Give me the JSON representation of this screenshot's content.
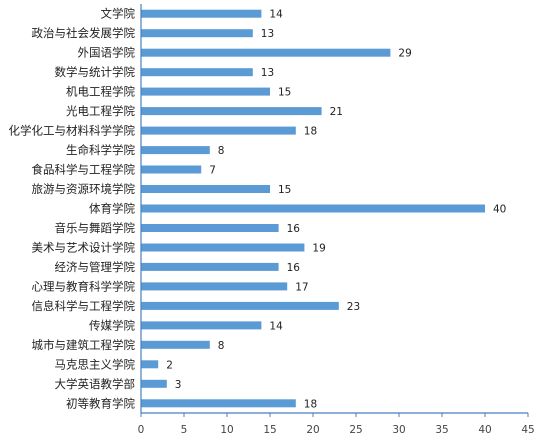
{
  "chart_data": {
    "type": "bar",
    "orientation": "horizontal",
    "categories": [
      "文学院",
      "政治与社会发展学院",
      "外国语学院",
      "数学与统计学院",
      "机电工程学院",
      "光电工程学院",
      "化学化工与材料科学学院",
      "生命科学学院",
      "食品科学与工程学院",
      "旅游与资源环境学院",
      "体育学院",
      "音乐与舞蹈学院",
      "美术与艺术设计学院",
      "经济与管理学院",
      "心理与教育科学学院",
      "信息科学与工程学院",
      "传媒学院",
      "城市与建筑工程学院",
      "马克思主义学院",
      "大学英语教学部",
      "初等教育学院"
    ],
    "values": [
      14,
      13,
      29,
      13,
      15,
      21,
      18,
      8,
      7,
      15,
      40,
      16,
      19,
      16,
      17,
      23,
      14,
      8,
      2,
      3,
      18
    ],
    "xlim": [
      0,
      45
    ],
    "xticks": [
      0,
      5,
      10,
      15,
      20,
      25,
      30,
      35,
      40,
      45
    ],
    "grid": false,
    "data_labels": true,
    "bar_color": "#5b9bd5",
    "axis_color": "#4a7fbf"
  }
}
